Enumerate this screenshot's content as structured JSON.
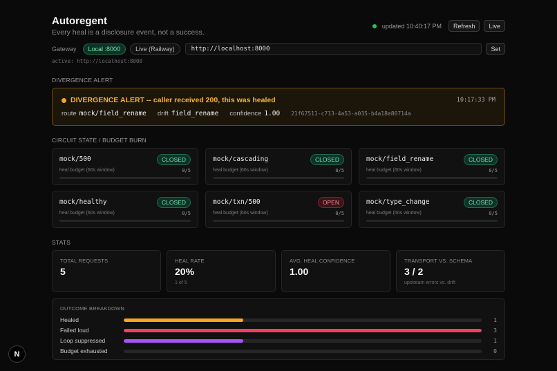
{
  "header": {
    "title": "Autoregent",
    "subtitle": "Every heal is a disclosure event, not a success.",
    "updated": "updated 10:40:17 PM",
    "refresh_label": "Refresh",
    "live_label": "Live",
    "status_color": "#22c55e"
  },
  "gateway": {
    "label": "Gateway",
    "options": [
      "Local :8000",
      "Live (Railway)"
    ],
    "selected": "Local :8000",
    "url_value": "http://localhost:8000",
    "set_label": "Set",
    "active_text": "active: http://localhost:8000"
  },
  "alert_section": {
    "label": "DIVERGENCE ALERT",
    "title": "DIVERGENCE ALERT -- caller received 200, this was healed",
    "time": "10:17:33 PM",
    "route_key": "route",
    "route_value": "mock/field_rename",
    "drift_key": "drift",
    "drift_value": "field_rename",
    "confidence_key": "confidence",
    "confidence_value": "1.00",
    "id": "21f67511-c713-4a53-a035-b4a18e80714a",
    "color": "#f5a623"
  },
  "circuit_section": {
    "label": "CIRCUIT STATE / BUDGET BURN",
    "cards": [
      {
        "name": "mock/500",
        "state": "CLOSED",
        "sub": "heal budget (60s window)",
        "count": "0/5"
      },
      {
        "name": "mock/cascading",
        "state": "CLOSED",
        "sub": "heal budget (60s window)",
        "count": "0/5"
      },
      {
        "name": "mock/field_rename",
        "state": "CLOSED",
        "sub": "heal budget (60s window)",
        "count": "0/5"
      },
      {
        "name": "mock/healthy",
        "state": "CLOSED",
        "sub": "heal budget (60s window)",
        "count": "0/5"
      },
      {
        "name": "mock/txn/500",
        "state": "OPEN",
        "sub": "heal budget (60s window)",
        "count": "0/5"
      },
      {
        "name": "mock/type_change",
        "state": "CLOSED",
        "sub": "heal budget (60s window)",
        "count": "0/5"
      }
    ]
  },
  "stats_section": {
    "label": "STATS",
    "stats": [
      {
        "label": "TOTAL REQUESTS",
        "value": "5",
        "sub": ""
      },
      {
        "label": "HEAL RATE",
        "value": "20%",
        "sub": "1 of 5"
      },
      {
        "label": "AVG. HEAL CONFIDENCE",
        "value": "1.00",
        "sub": ""
      },
      {
        "label": "TRANSPORT VS. SCHEMA",
        "value": "3 / 2",
        "sub": "upstream errors vs. drift"
      }
    ]
  },
  "outcome": {
    "label": "OUTCOME BREAKDOWN",
    "total": 3,
    "rows": [
      {
        "label": "Healed",
        "count": "1",
        "value": 1,
        "color": "#f5a623"
      },
      {
        "label": "Failed loud",
        "count": "3",
        "value": 3,
        "color": "#f43f5e"
      },
      {
        "label": "Loop suppressed",
        "count": "1",
        "value": 1,
        "color": "#a855f7"
      },
      {
        "label": "Budget exhausted",
        "count": "0",
        "value": 0,
        "color": "#6b7280"
      }
    ]
  },
  "logo": {
    "letter": "N",
    "icon": "nextjs-logo-icon"
  }
}
